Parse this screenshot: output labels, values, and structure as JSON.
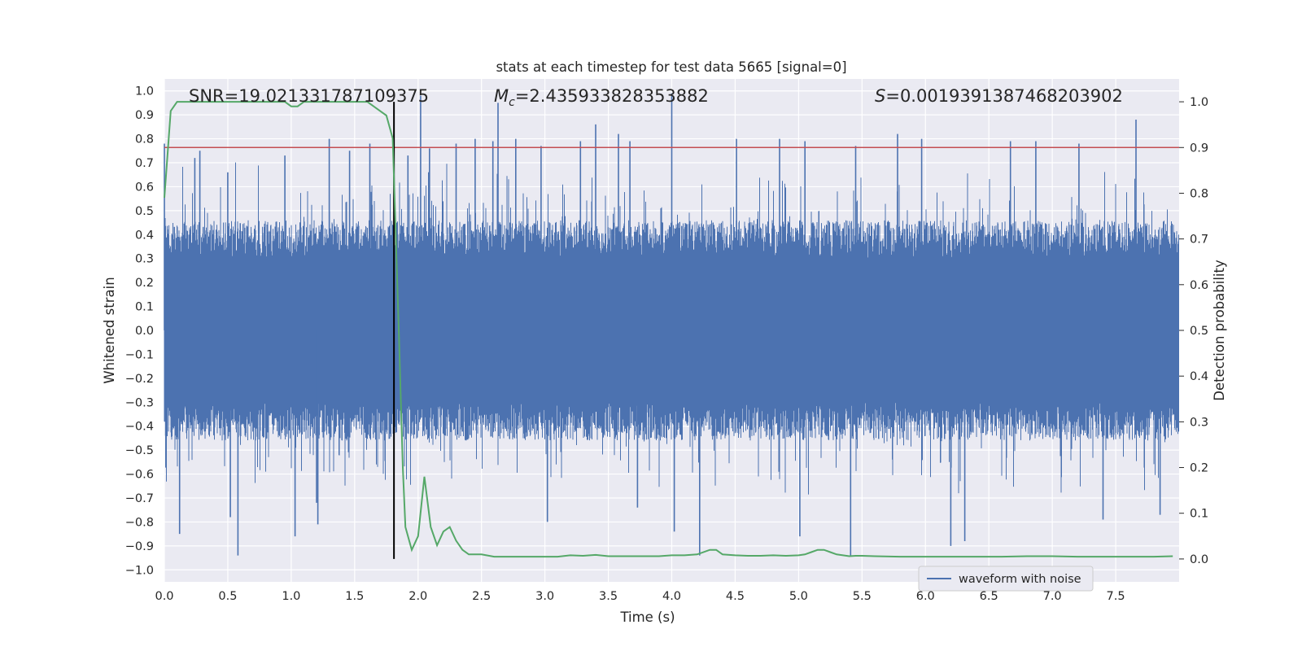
{
  "chart_data": {
    "type": "line",
    "title": "stats at each timestep for test data 5665 [signal=0]",
    "xlabel": "Time (s)",
    "ylabel": "Whitened strain",
    "ylabel_right": "Detection probability",
    "xlim": [
      0.0,
      8.0
    ],
    "ylim": [
      -1.05,
      1.05
    ],
    "ylim_right": [
      -0.05,
      1.05
    ],
    "x_ticks": [
      "0.0",
      "0.5",
      "1.0",
      "1.5",
      "2.0",
      "2.5",
      "3.0",
      "3.5",
      "4.0",
      "4.5",
      "5.0",
      "5.5",
      "6.0",
      "6.5",
      "7.0",
      "7.5"
    ],
    "y_ticks": [
      "1.0",
      "0.9",
      "0.8",
      "0.7",
      "0.6",
      "0.5",
      "0.4",
      "0.3",
      "0.2",
      "0.1",
      "0.0",
      "−0.1",
      "−0.2",
      "−0.3",
      "−0.4",
      "−0.5",
      "−0.6",
      "−0.7",
      "−0.8",
      "−0.9",
      "−1.0"
    ],
    "y_right_ticks": [
      "1.0",
      "0.9",
      "0.8",
      "0.7",
      "0.6",
      "0.5",
      "0.4",
      "0.3",
      "0.2",
      "0.1",
      "0.0"
    ],
    "grid": true,
    "legend_position": "lower right",
    "annotations": {
      "snr": "SNR=19.021331787109375",
      "mc_symbol": "M",
      "mc_sub": "c",
      "mc_value": "=2.435933828353882",
      "s_symbol": "S",
      "s_value": "=0.0019391387468203902"
    },
    "threshold": {
      "value": 0.9,
      "axis": "right",
      "color": "#c44e52"
    },
    "marker_time": {
      "x": 1.81,
      "color": "#000000"
    },
    "series": [
      {
        "name": "waveform with noise",
        "axis": "left",
        "color": "#4c72b0",
        "kind": "noise",
        "typical_envelope": 0.4,
        "spikes": [
          {
            "x": 0.0,
            "y": 0.78
          },
          {
            "x": 0.01,
            "y": -0.44
          },
          {
            "x": 0.12,
            "y": -0.85
          },
          {
            "x": 0.24,
            "y": 0.72
          },
          {
            "x": 0.28,
            "y": 0.75
          },
          {
            "x": 0.5,
            "y": 0.66
          },
          {
            "x": 0.52,
            "y": -0.78
          },
          {
            "x": 0.58,
            "y": -0.94
          },
          {
            "x": 0.95,
            "y": 0.73
          },
          {
            "x": 1.03,
            "y": -0.86
          },
          {
            "x": 1.2,
            "y": -0.72
          },
          {
            "x": 1.21,
            "y": -0.81
          },
          {
            "x": 1.3,
            "y": 0.8
          },
          {
            "x": 1.46,
            "y": 0.75
          },
          {
            "x": 1.62,
            "y": 0.78
          },
          {
            "x": 1.92,
            "y": 0.73
          },
          {
            "x": 2.02,
            "y": 0.98
          },
          {
            "x": 2.09,
            "y": 0.76
          },
          {
            "x": 2.3,
            "y": 0.78
          },
          {
            "x": 2.45,
            "y": 0.8
          },
          {
            "x": 2.59,
            "y": 0.79
          },
          {
            "x": 2.63,
            "y": 0.95
          },
          {
            "x": 2.77,
            "y": 0.8
          },
          {
            "x": 2.97,
            "y": 0.77
          },
          {
            "x": 3.02,
            "y": -0.8
          },
          {
            "x": 3.28,
            "y": 0.79
          },
          {
            "x": 3.4,
            "y": 0.86
          },
          {
            "x": 3.58,
            "y": 0.82
          },
          {
            "x": 3.67,
            "y": 0.79
          },
          {
            "x": 3.73,
            "y": -0.74
          },
          {
            "x": 4.0,
            "y": 0.99
          },
          {
            "x": 4.02,
            "y": -0.84
          },
          {
            "x": 4.22,
            "y": -0.94
          },
          {
            "x": 4.51,
            "y": 0.8
          },
          {
            "x": 4.85,
            "y": 0.8
          },
          {
            "x": 5.01,
            "y": -0.86
          },
          {
            "x": 5.05,
            "y": 0.79
          },
          {
            "x": 5.41,
            "y": -0.94
          },
          {
            "x": 5.45,
            "y": 0.77
          },
          {
            "x": 5.78,
            "y": 0.82
          },
          {
            "x": 5.97,
            "y": 0.8
          },
          {
            "x": 6.2,
            "y": -0.9
          },
          {
            "x": 6.31,
            "y": -0.88
          },
          {
            "x": 6.67,
            "y": 0.79
          },
          {
            "x": 6.87,
            "y": 0.79
          },
          {
            "x": 7.21,
            "y": 0.78
          },
          {
            "x": 7.4,
            "y": -0.79
          },
          {
            "x": 7.66,
            "y": 0.88
          },
          {
            "x": 7.85,
            "y": -0.77
          }
        ]
      },
      {
        "name": "",
        "axis": "right",
        "color": "#55a868",
        "x": [
          0.0,
          0.05,
          0.1,
          0.2,
          0.4,
          0.6,
          0.8,
          0.95,
          1.0,
          1.05,
          1.1,
          1.15,
          1.3,
          1.5,
          1.6,
          1.65,
          1.7,
          1.75,
          1.8,
          1.85,
          1.88,
          1.9,
          1.95,
          2.0,
          2.05,
          2.1,
          2.15,
          2.2,
          2.25,
          2.3,
          2.35,
          2.4,
          2.5,
          2.6,
          2.7,
          2.8,
          3.0,
          3.1,
          3.2,
          3.3,
          3.4,
          3.5,
          3.6,
          3.7,
          3.8,
          3.9,
          4.0,
          4.1,
          4.2,
          4.3,
          4.35,
          4.4,
          4.5,
          4.6,
          4.7,
          4.8,
          4.9,
          5.0,
          5.05,
          5.1,
          5.15,
          5.2,
          5.25,
          5.3,
          5.35,
          5.4,
          5.45,
          5.5,
          5.6,
          5.8,
          6.0,
          6.2,
          6.4,
          6.6,
          6.8,
          6.9,
          7.0,
          7.2,
          7.4,
          7.6,
          7.8,
          7.95
        ],
        "values": [
          0.79,
          0.98,
          1.0,
          1.0,
          1.0,
          1.0,
          1.0,
          1.0,
          0.99,
          0.99,
          1.0,
          1.0,
          1.0,
          1.0,
          1.0,
          0.99,
          0.98,
          0.97,
          0.92,
          0.48,
          0.2,
          0.07,
          0.02,
          0.05,
          0.18,
          0.07,
          0.03,
          0.06,
          0.07,
          0.04,
          0.02,
          0.01,
          0.01,
          0.005,
          0.005,
          0.005,
          0.005,
          0.005,
          0.008,
          0.007,
          0.009,
          0.006,
          0.006,
          0.006,
          0.006,
          0.006,
          0.008,
          0.008,
          0.01,
          0.02,
          0.02,
          0.01,
          0.008,
          0.007,
          0.007,
          0.008,
          0.007,
          0.008,
          0.01,
          0.015,
          0.02,
          0.02,
          0.015,
          0.01,
          0.008,
          0.006,
          0.007,
          0.007,
          0.006,
          0.005,
          0.005,
          0.005,
          0.005,
          0.005,
          0.006,
          0.006,
          0.006,
          0.005,
          0.005,
          0.005,
          0.005,
          0.006
        ]
      }
    ]
  }
}
